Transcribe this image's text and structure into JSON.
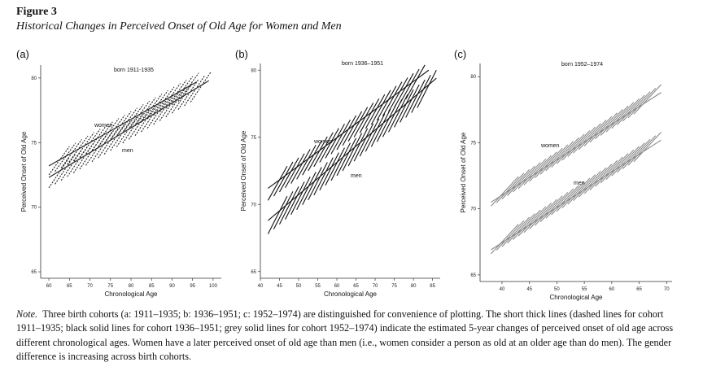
{
  "figure": {
    "label": "Figure 3",
    "title": "Historical Changes in Perceived Onset of Old Age for Women and Men"
  },
  "note": {
    "lead": "Note.",
    "text": "Three birth cohorts (a: 1911–1935; b: 1936–1951; c: 1952–1974) are distinguished for convenience of plotting. The short thick lines (dashed lines for cohort 1911–1935; black solid lines for cohort 1936–1951; grey solid lines for cohort 1952–1974) indicate the estimated 5-year changes of perceived onset of old age across different chronological ages. Women have a later perceived onset of old age than men (i.e., women consider a person as old at an older age than do men). The gender difference is increasing across birth cohorts."
  },
  "chart_data": [
    {
      "type": "line",
      "panel": "(a)",
      "title": "born 1911-1935",
      "xlabel": "Chronological Age",
      "ylabel": "Perceived Onset of Old Age",
      "xlim": [
        58,
        102
      ],
      "ylim": [
        64.5,
        81
      ],
      "x_ticks": [
        60,
        65,
        70,
        75,
        80,
        85,
        90,
        95,
        100
      ],
      "y_ticks": [
        65,
        70,
        75,
        80
      ],
      "line_style": "dashed",
      "line_color": "#222222",
      "series": [
        {
          "name": "women",
          "trend_start": [
            60,
            73.2
          ],
          "trend_end": [
            96,
            79.7
          ],
          "segments_start_x": [
            60,
            61.5,
            63,
            64.5,
            66,
            67.5,
            69,
            70.5,
            72,
            73.5,
            75,
            76.5,
            78,
            79.5,
            81,
            82.5,
            84,
            85.5,
            87,
            88.5,
            90,
            91.5
          ],
          "segments_start_y_offset": -0.7
        },
        {
          "name": "men",
          "trend_start": [
            60,
            72.3
          ],
          "trend_end": [
            99,
            79.8
          ],
          "segments_start_x": [
            60,
            61.5,
            63,
            64.5,
            66,
            67.5,
            69,
            70.5,
            72,
            73.5,
            75,
            76.5,
            78,
            79.5,
            81,
            82.5,
            84,
            85.5,
            87,
            88.5,
            90,
            91.5,
            93,
            94.5
          ],
          "segments_start_y_offset": -0.8
        }
      ]
    },
    {
      "type": "line",
      "panel": "(b)",
      "title": "born 1936–1951",
      "xlabel": "Chronological Age",
      "ylabel": "Perceived Onset of Old Age",
      "xlim": [
        40,
        87
      ],
      "ylim": [
        64.5,
        80.5
      ],
      "x_ticks": [
        40,
        45,
        50,
        55,
        60,
        65,
        70,
        75,
        80,
        85
      ],
      "y_ticks": [
        65,
        70,
        75,
        80
      ],
      "line_style": "solid",
      "line_color": "#111111",
      "series": [
        {
          "name": "women",
          "trend_start": [
            42,
            71.2
          ],
          "trend_end": [
            84,
            80.0
          ],
          "segments_start_x": [
            42,
            43.5,
            45,
            46.5,
            48,
            49.5,
            51,
            52.5,
            54,
            55.5,
            57,
            58.5,
            60,
            61.5,
            63,
            64.5,
            66,
            67.5,
            69,
            70.5,
            72,
            73.5,
            75,
            76.5,
            78
          ],
          "segments_start_y_offset": -0.9
        },
        {
          "name": "men",
          "trend_start": [
            42,
            68.8
          ],
          "trend_end": [
            86,
            79.4
          ],
          "segments_start_x": [
            42,
            43.5,
            45,
            46.5,
            48,
            49.5,
            51,
            52.5,
            54,
            55.5,
            57,
            58.5,
            60,
            61.5,
            63,
            64.5,
            66,
            67.5,
            69,
            70.5,
            72,
            73.5,
            75,
            76.5,
            78,
            79.5,
            81
          ],
          "segments_start_y_offset": -1.0
        }
      ]
    },
    {
      "type": "line",
      "panel": "(c)",
      "title": "born 1952–1974",
      "xlabel": "Chronological Age",
      "ylabel": "Perceived Onset of Old Age",
      "xlim": [
        36,
        71
      ],
      "ylim": [
        64.5,
        81
      ],
      "x_ticks": [
        40,
        45,
        50,
        55,
        60,
        65,
        70
      ],
      "y_ticks": [
        65,
        70,
        75,
        80
      ],
      "line_style": "solid",
      "line_color": "#8a8a8a",
      "series": [
        {
          "name": "women",
          "trend_start": [
            38,
            70.5
          ],
          "trend_end": [
            69,
            78.8
          ],
          "segments_start_x": [
            38,
            39,
            40,
            41,
            42,
            43,
            44,
            45,
            46,
            47,
            48,
            49,
            50,
            51,
            52,
            53,
            54,
            55,
            56,
            57,
            58,
            59,
            60,
            61,
            62,
            63,
            64
          ],
          "segments_start_y_offset": -0.3
        },
        {
          "name": "men",
          "trend_start": [
            38,
            66.9
          ],
          "trend_end": [
            69,
            75.2
          ],
          "segments_start_x": [
            38,
            39,
            40,
            41,
            42,
            43,
            44,
            45,
            46,
            47,
            48,
            49,
            50,
            51,
            52,
            53,
            54,
            55,
            56,
            57,
            58,
            59,
            60,
            61,
            62,
            63,
            64
          ],
          "segments_start_y_offset": -0.3
        }
      ]
    }
  ]
}
